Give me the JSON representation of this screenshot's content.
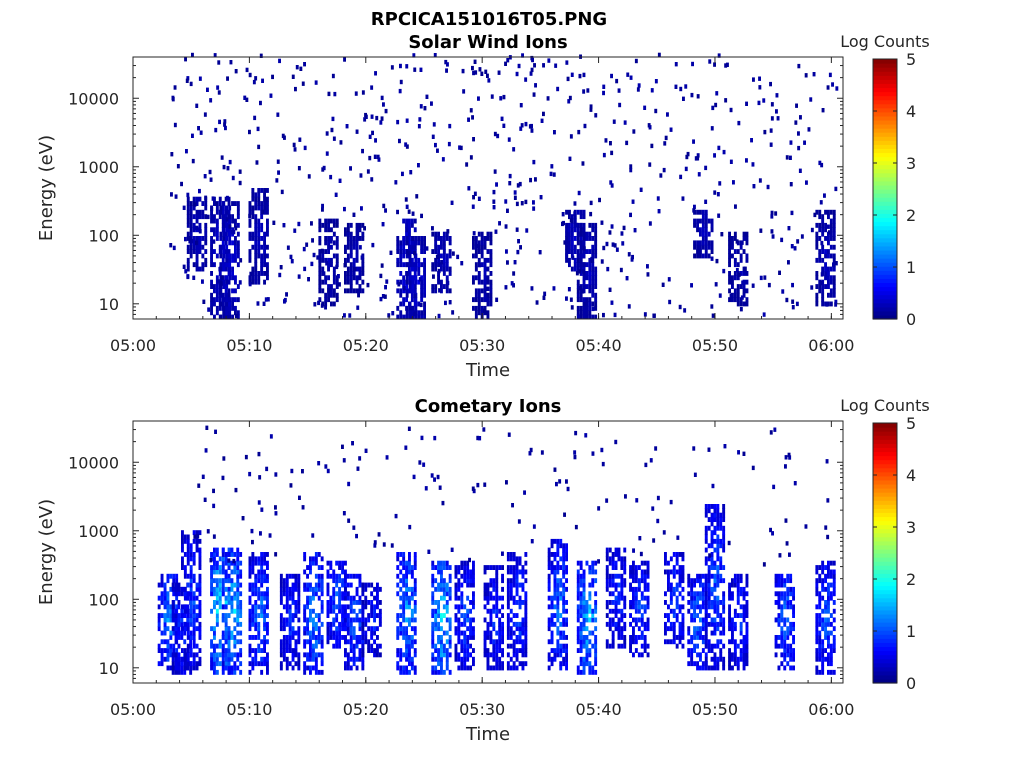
{
  "figure": {
    "title": "RPCICA151016T05.PNG"
  },
  "chart_data": [
    {
      "type": "heatmap",
      "title": "Solar Wind Ions",
      "xlabel": "Time",
      "ylabel": "Energy (eV)",
      "x_range": [
        "05:00",
        "06:01"
      ],
      "x_ticks": [
        "05:00",
        "05:10",
        "05:20",
        "05:30",
        "05:40",
        "05:50",
        "06:00"
      ],
      "y_scale": "log",
      "y_range": [
        6,
        40000
      ],
      "y_ticks": [
        "10",
        "100",
        "1000",
        "10000"
      ],
      "colorbar": {
        "label": "Log Counts",
        "range": [
          0,
          5
        ],
        "ticks": [
          "0",
          "1",
          "2",
          "3",
          "4",
          "5"
        ],
        "colormap": "jet"
      },
      "background": "#ffffff",
      "grid": false,
      "bands": [
        {
          "t": 5.5,
          "e_lo": 30,
          "e_hi": 300,
          "level": 0.3
        },
        {
          "t": 7.5,
          "e_lo": 6,
          "e_hi": 300,
          "level": 0.4
        },
        {
          "t": 8.3,
          "e_lo": 6,
          "e_hi": 250,
          "level": 0.4
        },
        {
          "t": 10.8,
          "e_lo": 20,
          "e_hi": 400,
          "level": 0.3
        },
        {
          "t": 16.8,
          "e_lo": 10,
          "e_hi": 150,
          "level": 0.25
        },
        {
          "t": 19.0,
          "e_lo": 15,
          "e_hi": 120,
          "level": 0.25
        },
        {
          "t": 23.5,
          "e_lo": 6,
          "e_hi": 150,
          "level": 0.45
        },
        {
          "t": 24.3,
          "e_lo": 6,
          "e_hi": 80,
          "level": 0.4
        },
        {
          "t": 26.5,
          "e_lo": 15,
          "e_hi": 100,
          "level": 0.3
        },
        {
          "t": 30.0,
          "e_lo": 6,
          "e_hi": 100,
          "level": 0.25
        },
        {
          "t": 38.0,
          "e_lo": 30,
          "e_hi": 200,
          "level": 0.35
        },
        {
          "t": 39.0,
          "e_lo": 6,
          "e_hi": 120,
          "level": 0.3
        },
        {
          "t": 49.0,
          "e_lo": 50,
          "e_hi": 200,
          "level": 0.3
        },
        {
          "t": 52.0,
          "e_lo": 10,
          "e_hi": 100,
          "level": 0.25
        },
        {
          "t": 59.5,
          "e_lo": 10,
          "e_hi": 200,
          "level": 0.3
        }
      ],
      "scatter": {
        "t_range": [
          3,
          60.5
        ],
        "e_range": [
          6,
          40000
        ],
        "count": 700,
        "level": 0.15
      }
    },
    {
      "type": "heatmap",
      "title": "Cometary Ions",
      "xlabel": "Time",
      "ylabel": "Energy (eV)",
      "x_range": [
        "05:00",
        "06:01"
      ],
      "x_ticks": [
        "05:00",
        "05:10",
        "05:20",
        "05:30",
        "05:40",
        "05:50",
        "06:00"
      ],
      "y_scale": "log",
      "y_range": [
        6,
        40000
      ],
      "y_ticks": [
        "10",
        "100",
        "1000",
        "10000"
      ],
      "colorbar": {
        "label": "Log Counts",
        "range": [
          0,
          5
        ],
        "ticks": [
          "0",
          "1",
          "2",
          "3",
          "4",
          "5"
        ],
        "colormap": "jet"
      },
      "background": "#ffffff",
      "grid": false,
      "bands": [
        {
          "t": 3.0,
          "e_lo": 10,
          "e_hi": 200,
          "level": 1.2
        },
        {
          "t": 4.2,
          "e_lo": 8,
          "e_hi": 150,
          "level": 0.8
        },
        {
          "t": 5.0,
          "e_lo": 10,
          "e_hi": 800,
          "level": 0.9
        },
        {
          "t": 7.5,
          "e_lo": 8,
          "e_hi": 500,
          "level": 1.8
        },
        {
          "t": 8.5,
          "e_lo": 8,
          "e_hi": 500,
          "level": 1.5
        },
        {
          "t": 10.8,
          "e_lo": 8,
          "e_hi": 400,
          "level": 1.1
        },
        {
          "t": 13.5,
          "e_lo": 10,
          "e_hi": 200,
          "level": 0.8
        },
        {
          "t": 15.5,
          "e_lo": 8,
          "e_hi": 400,
          "level": 1.2
        },
        {
          "t": 17.5,
          "e_lo": 20,
          "e_hi": 300,
          "level": 1.0
        },
        {
          "t": 19.0,
          "e_lo": 10,
          "e_hi": 200,
          "level": 1.0
        },
        {
          "t": 20.5,
          "e_lo": 15,
          "e_hi": 150,
          "level": 0.7
        },
        {
          "t": 23.5,
          "e_lo": 8,
          "e_hi": 400,
          "level": 1.3
        },
        {
          "t": 26.5,
          "e_lo": 8,
          "e_hi": 300,
          "level": 1.6
        },
        {
          "t": 28.5,
          "e_lo": 10,
          "e_hi": 300,
          "level": 0.9
        },
        {
          "t": 31.0,
          "e_lo": 10,
          "e_hi": 250,
          "level": 0.8
        },
        {
          "t": 33.0,
          "e_lo": 10,
          "e_hi": 400,
          "level": 0.9
        },
        {
          "t": 36.5,
          "e_lo": 10,
          "e_hi": 600,
          "level": 1.1
        },
        {
          "t": 39.0,
          "e_lo": 8,
          "e_hi": 300,
          "level": 1.5
        },
        {
          "t": 41.5,
          "e_lo": 20,
          "e_hi": 500,
          "level": 0.8
        },
        {
          "t": 43.5,
          "e_lo": 15,
          "e_hi": 300,
          "level": 0.9
        },
        {
          "t": 46.5,
          "e_lo": 20,
          "e_hi": 400,
          "level": 0.9
        },
        {
          "t": 48.5,
          "e_lo": 10,
          "e_hi": 200,
          "level": 1.1
        },
        {
          "t": 50.0,
          "e_lo": 10,
          "e_hi": 2000,
          "level": 1.0
        },
        {
          "t": 52.0,
          "e_lo": 10,
          "e_hi": 200,
          "level": 0.8
        },
        {
          "t": 56.0,
          "e_lo": 10,
          "e_hi": 200,
          "level": 1.1
        },
        {
          "t": 59.5,
          "e_lo": 8,
          "e_hi": 300,
          "level": 1.0
        }
      ],
      "scatter": {
        "t_range": [
          5,
          60
        ],
        "e_range": [
          300,
          30000
        ],
        "count": 160,
        "level": 0.15
      }
    }
  ]
}
